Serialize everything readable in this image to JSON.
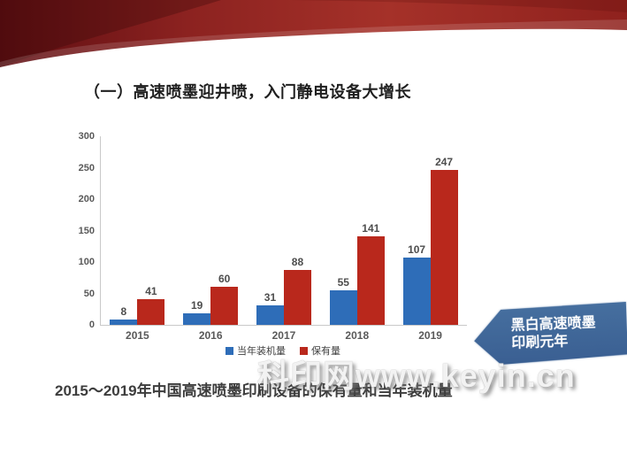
{
  "slide": {
    "title": "（一）高速喷墨迎井喷，入门静电设备大增长",
    "caption": "2015～2019年中国高速喷墨印刷设备的保有量和当年装机量",
    "watermark": "科印网www.keyin.cn",
    "callout": {
      "line1": "黑白高速喷墨",
      "line2": "印刷元年",
      "color": "#3c6296"
    },
    "colors": {
      "ribbon_red": "#9c2822",
      "bar_blue": "#2e6db8",
      "bar_red": "#b9281c",
      "axis_gray": "#c9c9c9"
    }
  },
  "chart_data": {
    "type": "bar",
    "categories": [
      "2015",
      "2016",
      "2017",
      "2018",
      "2019"
    ],
    "series": [
      {
        "name": "当年装机量",
        "color": "#2e6db8",
        "values": [
          8,
          19,
          31,
          55,
          107
        ]
      },
      {
        "name": "保有量",
        "color": "#b9281c",
        "values": [
          41,
          60,
          88,
          141,
          247
        ]
      }
    ],
    "title": "",
    "xlabel": "",
    "ylabel": "",
    "ylim": [
      0,
      300
    ],
    "yticks": [
      0,
      50,
      100,
      150,
      200,
      250,
      300
    ],
    "grid": false,
    "legend_position": "bottom"
  }
}
